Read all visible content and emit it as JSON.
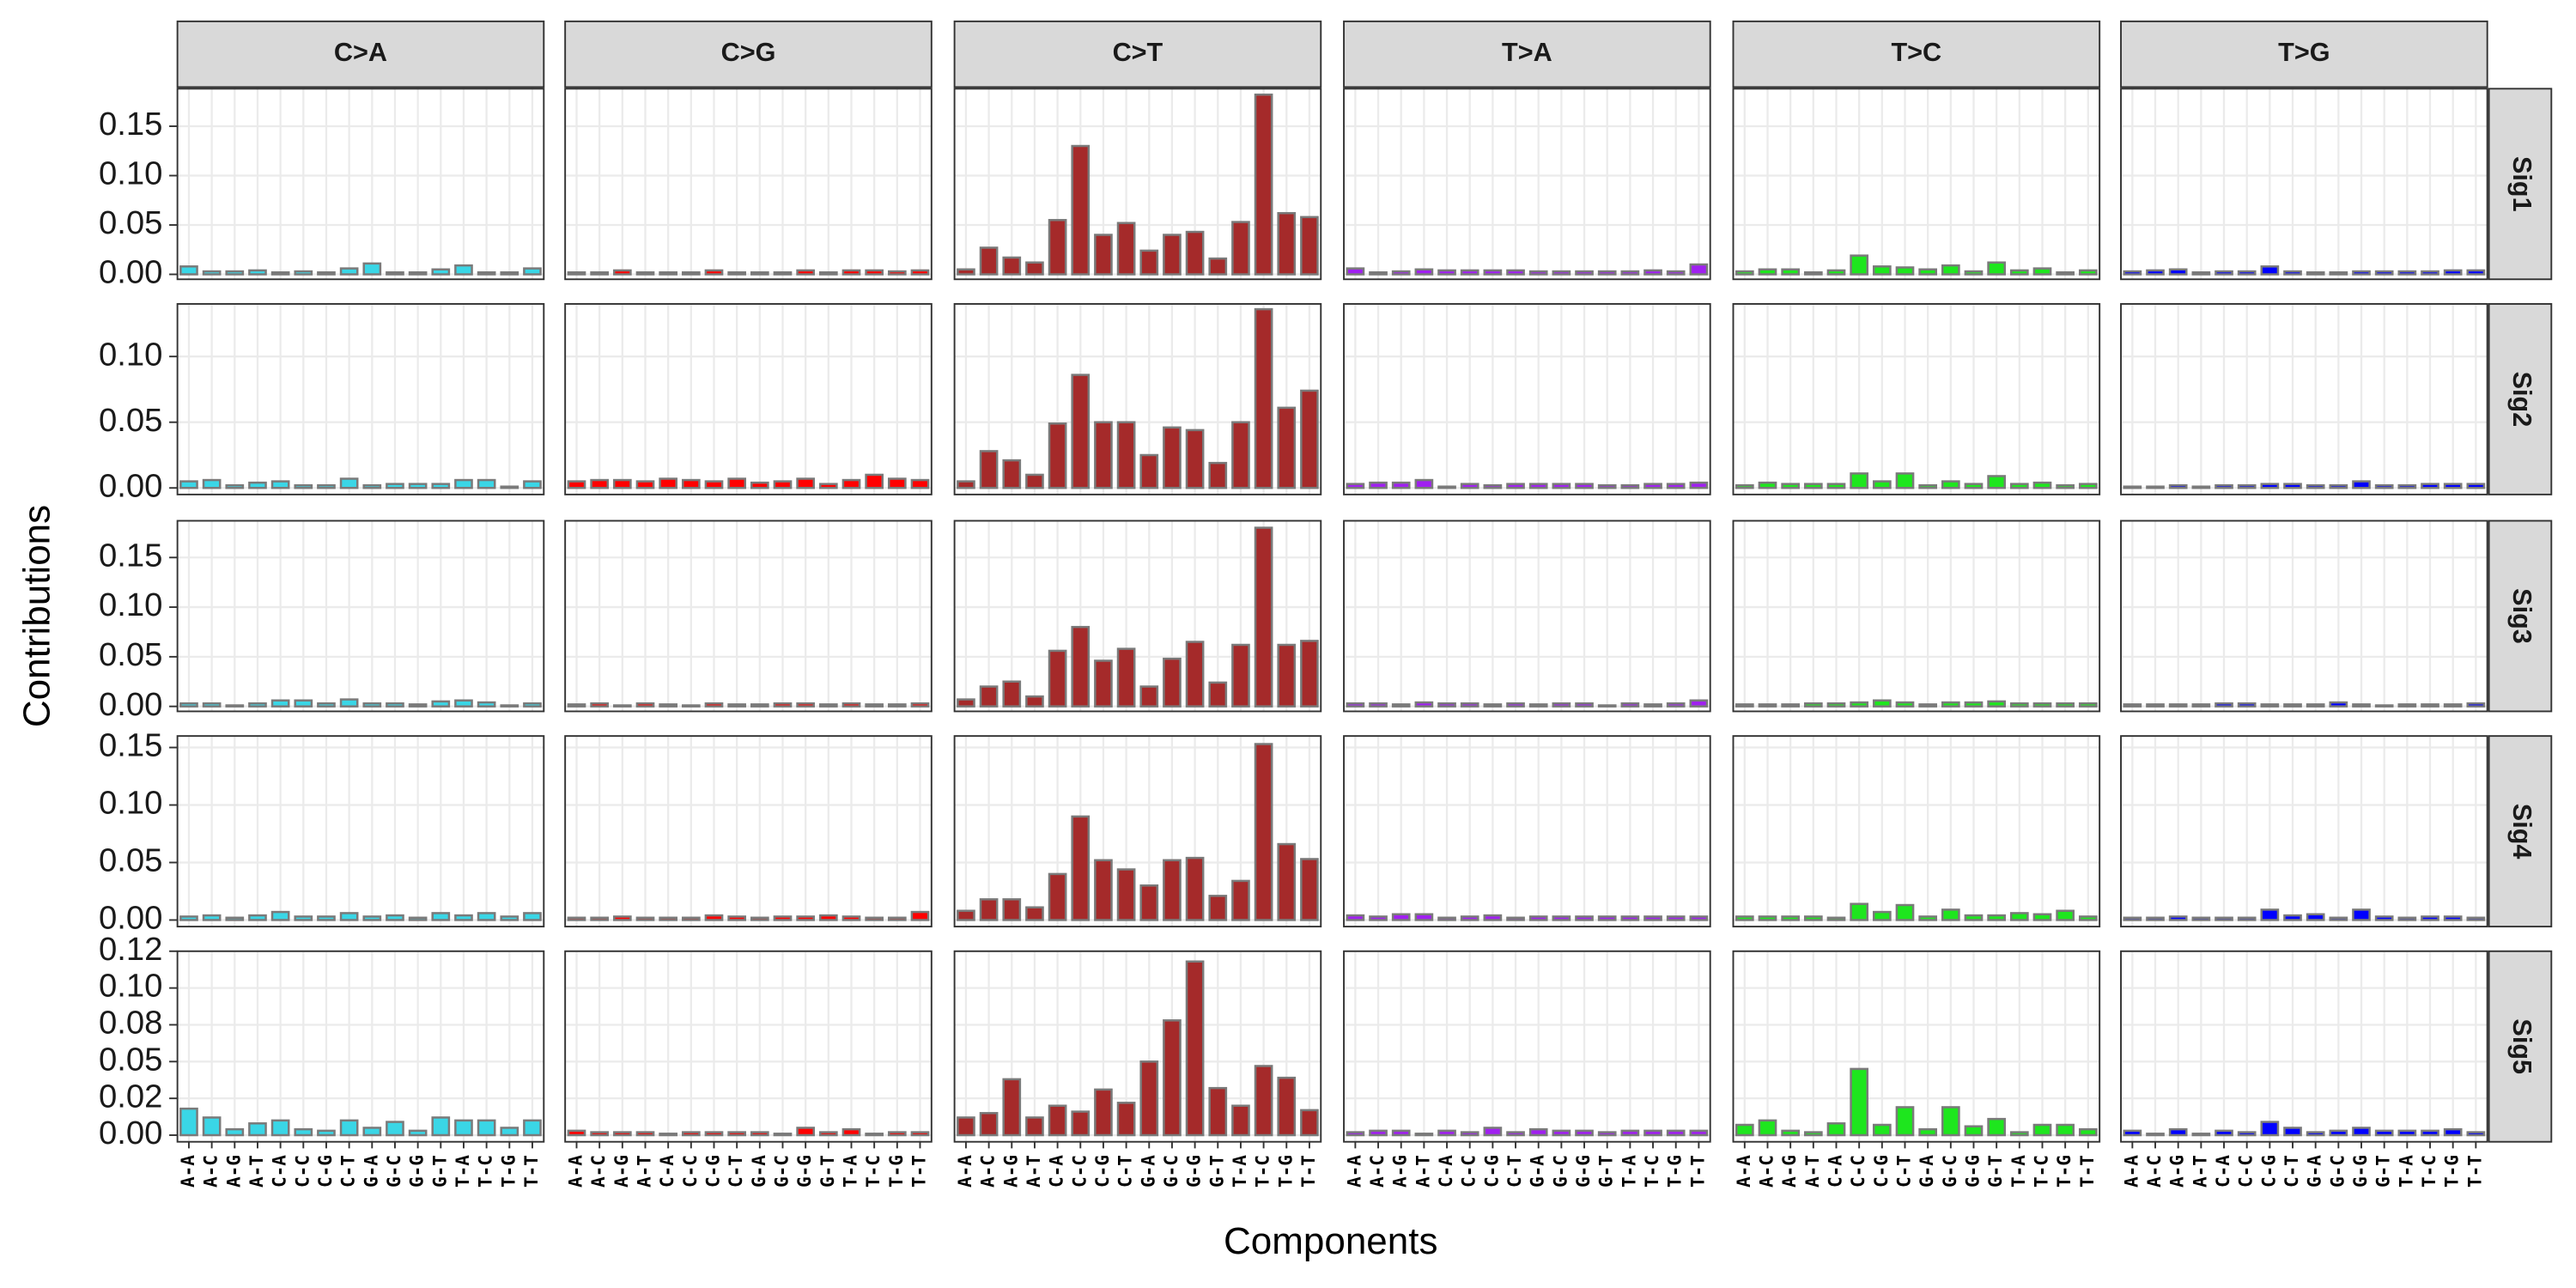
{
  "chart_data": {
    "type": "bar",
    "x_label": "Components",
    "y_label": "Contributions",
    "grid": true,
    "bar_border": "#7a7a7a",
    "categories": [
      "A-A",
      "A-C",
      "A-G",
      "A-T",
      "C-A",
      "C-C",
      "C-G",
      "C-T",
      "G-A",
      "G-C",
      "G-G",
      "G-T",
      "T-A",
      "T-C",
      "T-G",
      "T-T"
    ],
    "columns": [
      {
        "name": "C>A",
        "color": "#3ad6e6"
      },
      {
        "name": "C>G",
        "color": "#ff0000"
      },
      {
        "name": "C>T",
        "color": "#a52a2a"
      },
      {
        "name": "T>A",
        "color": "#a020f0"
      },
      {
        "name": "T>C",
        "color": "#1ee61e"
      },
      {
        "name": "T>G",
        "color": "#0000ff"
      }
    ],
    "rows": [
      {
        "name": "Sig1",
        "ylim": [
          -0.005,
          0.188
        ],
        "yticks": [
          {
            "value": 0,
            "label": "0.00"
          },
          0.05,
          {
            "value": 0.1,
            "label": "0.10"
          },
          0.15
        ],
        "panels": [
          {
            "values": [
              0.008,
              0.003,
              0.003,
              0.004,
              0.002,
              0.003,
              0.002,
              0.006,
              0.011,
              0.002,
              0.002,
              0.005,
              0.009,
              0.002,
              0.002,
              0.006
            ]
          },
          {
            "values": [
              0.002,
              0.002,
              0.004,
              0.002,
              0.002,
              0.002,
              0.004,
              0.002,
              0.002,
              0.002,
              0.004,
              0.002,
              0.004,
              0.004,
              0.003,
              0.004
            ]
          },
          {
            "values": [
              0.005,
              0.027,
              0.017,
              0.012,
              0.055,
              0.13,
              0.04,
              0.052,
              0.024,
              0.04,
              0.043,
              0.016,
              0.053,
              0.182,
              0.062,
              0.058
            ]
          },
          {
            "values": [
              0.006,
              0.002,
              0.003,
              0.005,
              0.004,
              0.004,
              0.004,
              0.004,
              0.003,
              0.003,
              0.003,
              0.003,
              0.003,
              0.004,
              0.003,
              0.01
            ]
          },
          {
            "values": [
              0.003,
              0.005,
              0.005,
              0.002,
              0.004,
              0.019,
              0.008,
              0.007,
              0.005,
              0.009,
              0.003,
              0.012,
              0.004,
              0.006,
              0.002,
              0.004
            ]
          },
          {
            "values": [
              0.003,
              0.004,
              0.005,
              0.002,
              0.003,
              0.003,
              0.008,
              0.003,
              0.002,
              0.002,
              0.003,
              0.003,
              0.003,
              0.003,
              0.004,
              0.004
            ]
          }
        ]
      },
      {
        "name": "Sig2",
        "ylim": [
          -0.005,
          0.14
        ],
        "yticks": [
          {
            "value": 0,
            "label": "0.00"
          },
          0.05,
          {
            "value": 0.1,
            "label": "0.10"
          }
        ],
        "panels": [
          {
            "values": [
              0.005,
              0.006,
              0.002,
              0.004,
              0.005,
              0.002,
              0.002,
              0.007,
              0.002,
              0.003,
              0.003,
              0.003,
              0.006,
              0.006,
              0.001,
              0.005
            ]
          },
          {
            "values": [
              0.005,
              0.006,
              0.006,
              0.005,
              0.007,
              0.006,
              0.005,
              0.007,
              0.004,
              0.005,
              0.007,
              0.003,
              0.006,
              0.01,
              0.007,
              0.006
            ]
          },
          {
            "values": [
              0.005,
              0.028,
              0.021,
              0.01,
              0.049,
              0.086,
              0.05,
              0.05,
              0.025,
              0.046,
              0.044,
              0.019,
              0.05,
              0.136,
              0.061,
              0.074
            ]
          },
          {
            "values": [
              0.003,
              0.004,
              0.004,
              0.006,
              0.001,
              0.003,
              0.002,
              0.003,
              0.003,
              0.003,
              0.003,
              0.002,
              0.002,
              0.003,
              0.003,
              0.004
            ]
          },
          {
            "values": [
              0.002,
              0.004,
              0.003,
              0.003,
              0.003,
              0.011,
              0.005,
              0.011,
              0.002,
              0.005,
              0.003,
              0.009,
              0.003,
              0.004,
              0.002,
              0.003
            ]
          },
          {
            "values": [
              0.001,
              0.001,
              0.002,
              0.001,
              0.002,
              0.002,
              0.003,
              0.003,
              0.002,
              0.002,
              0.005,
              0.002,
              0.002,
              0.003,
              0.003,
              0.003
            ]
          }
        ]
      },
      {
        "name": "Sig3",
        "ylim": [
          -0.005,
          0.187
        ],
        "yticks": [
          {
            "value": 0,
            "label": "0.00"
          },
          0.05,
          {
            "value": 0.1,
            "label": "0.10"
          },
          0.15
        ],
        "panels": [
          {
            "values": [
              0.003,
              0.003,
              0.001,
              0.003,
              0.006,
              0.006,
              0.003,
              0.007,
              0.003,
              0.003,
              0.002,
              0.005,
              0.006,
              0.004,
              0.001,
              0.003
            ]
          },
          {
            "values": [
              0.002,
              0.003,
              0.001,
              0.003,
              0.002,
              0.001,
              0.003,
              0.002,
              0.002,
              0.003,
              0.003,
              0.002,
              0.003,
              0.002,
              0.002,
              0.003
            ]
          },
          {
            "values": [
              0.007,
              0.02,
              0.025,
              0.01,
              0.056,
              0.08,
              0.046,
              0.058,
              0.02,
              0.048,
              0.065,
              0.024,
              0.062,
              0.18,
              0.062,
              0.066
            ]
          },
          {
            "values": [
              0.003,
              0.003,
              0.002,
              0.004,
              0.003,
              0.003,
              0.002,
              0.003,
              0.002,
              0.003,
              0.003,
              0.001,
              0.003,
              0.002,
              0.003,
              0.006
            ]
          },
          {
            "values": [
              0.002,
              0.002,
              0.002,
              0.003,
              0.003,
              0.004,
              0.006,
              0.004,
              0.002,
              0.004,
              0.004,
              0.005,
              0.003,
              0.003,
              0.003,
              0.003
            ]
          },
          {
            "values": [
              0.002,
              0.002,
              0.002,
              0.002,
              0.003,
              0.003,
              0.002,
              0.002,
              0.002,
              0.004,
              0.002,
              0.001,
              0.002,
              0.002,
              0.002,
              0.003
            ]
          }
        ]
      },
      {
        "name": "Sig4",
        "ylim": [
          -0.0057,
          0.16
        ],
        "yticks": [
          {
            "value": 0,
            "label": "0.00"
          },
          0.05,
          {
            "value": 0.1,
            "label": "0.10"
          },
          0.15
        ],
        "panels": [
          {
            "values": [
              0.003,
              0.004,
              0.002,
              0.004,
              0.007,
              0.003,
              0.003,
              0.006,
              0.003,
              0.004,
              0.002,
              0.006,
              0.004,
              0.006,
              0.003,
              0.006
            ]
          },
          {
            "values": [
              0.002,
              0.002,
              0.003,
              0.002,
              0.002,
              0.002,
              0.004,
              0.003,
              0.002,
              0.003,
              0.003,
              0.004,
              0.003,
              0.002,
              0.002,
              0.007
            ]
          },
          {
            "values": [
              0.008,
              0.018,
              0.018,
              0.011,
              0.04,
              0.09,
              0.052,
              0.044,
              0.03,
              0.052,
              0.054,
              0.021,
              0.034,
              0.153,
              0.066,
              0.053
            ]
          },
          {
            "values": [
              0.004,
              0.003,
              0.005,
              0.005,
              0.002,
              0.003,
              0.004,
              0.002,
              0.003,
              0.003,
              0.003,
              0.003,
              0.003,
              0.003,
              0.003,
              0.003
            ]
          },
          {
            "values": [
              0.003,
              0.003,
              0.003,
              0.003,
              0.002,
              0.014,
              0.007,
              0.013,
              0.003,
              0.009,
              0.004,
              0.004,
              0.006,
              0.005,
              0.008,
              0.003
            ]
          },
          {
            "values": [
              0.002,
              0.002,
              0.003,
              0.002,
              0.002,
              0.002,
              0.009,
              0.004,
              0.005,
              0.002,
              0.009,
              0.003,
              0.002,
              0.003,
              0.003,
              0.002
            ]
          }
        ]
      },
      {
        "name": "Sig5",
        "ylim": [
          -0.0045,
          0.125
        ],
        "yticks": [
          {
            "value": 0,
            "label": "0.00"
          },
          {
            "value": 0.025,
            "label": "0.02"
          },
          0.05,
          {
            "value": 0.075,
            "label": "0.08"
          },
          {
            "value": 0.1,
            "label": "0.10"
          },
          {
            "value": 0.125,
            "label": "0.12"
          }
        ],
        "panels": [
          {
            "values": [
              0.018,
              0.012,
              0.004,
              0.008,
              0.01,
              0.004,
              0.003,
              0.01,
              0.005,
              0.009,
              0.003,
              0.012,
              0.01,
              0.01,
              0.005,
              0.01
            ]
          },
          {
            "values": [
              0.003,
              0.002,
              0.002,
              0.002,
              0.001,
              0.002,
              0.002,
              0.002,
              0.002,
              0.001,
              0.005,
              0.002,
              0.004,
              0.001,
              0.002,
              0.002
            ]
          },
          {
            "values": [
              0.012,
              0.015,
              0.038,
              0.012,
              0.02,
              0.016,
              0.031,
              0.022,
              0.05,
              0.078,
              0.118,
              0.032,
              0.02,
              0.047,
              0.039,
              0.017
            ]
          },
          {
            "values": [
              0.002,
              0.003,
              0.003,
              0.001,
              0.003,
              0.002,
              0.005,
              0.002,
              0.004,
              0.003,
              0.003,
              0.002,
              0.003,
              0.003,
              0.003,
              0.003
            ]
          },
          {
            "values": [
              0.007,
              0.01,
              0.003,
              0.002,
              0.008,
              0.045,
              0.007,
              0.019,
              0.004,
              0.019,
              0.006,
              0.011,
              0.002,
              0.007,
              0.007,
              0.004
            ]
          },
          {
            "values": [
              0.003,
              0.001,
              0.004,
              0.001,
              0.003,
              0.002,
              0.009,
              0.005,
              0.002,
              0.003,
              0.005,
              0.003,
              0.003,
              0.003,
              0.004,
              0.002
            ]
          }
        ]
      }
    ]
  }
}
